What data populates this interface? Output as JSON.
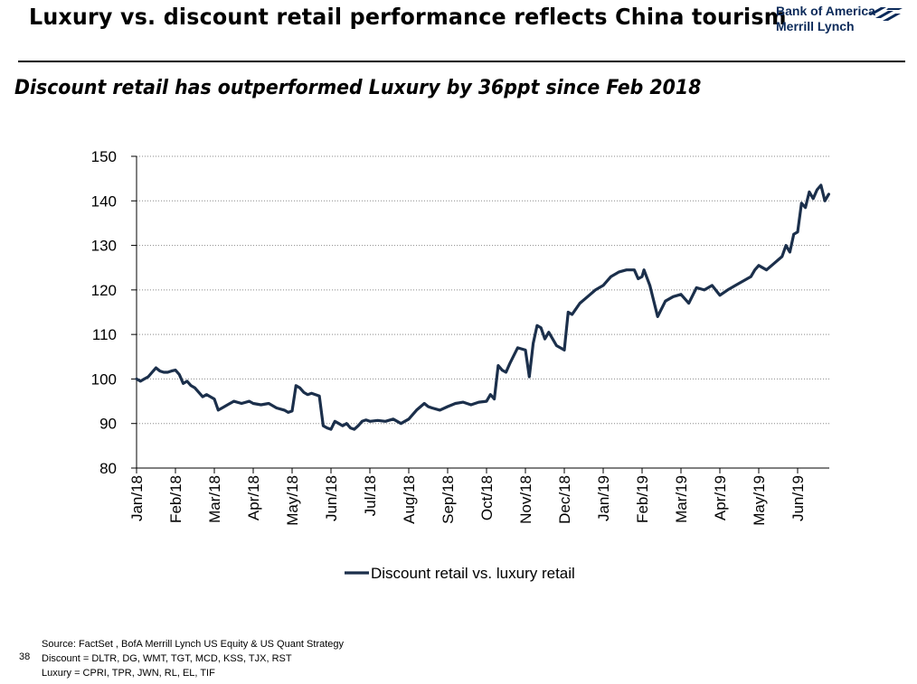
{
  "header": {
    "title": "Luxury vs. discount retail performance reflects China tourism",
    "logo_line1": "Bank of America",
    "logo_line2": "Merrill Lynch",
    "brand_color": "#0b2a5a",
    "flag_color": "#0b2a5a"
  },
  "subtitle": "Discount retail has outperformed Luxury by 36ppt since Feb 2018",
  "chart_data": {
    "type": "line",
    "title": "Discount retail has outperformed Luxury by 36ppt since Feb 2018",
    "xlabel": "",
    "ylabel": "",
    "ylim": [
      80,
      150
    ],
    "yticks": [
      "80",
      "90",
      "100",
      "110",
      "120",
      "130",
      "140",
      "150"
    ],
    "categories": [
      "Jan/18",
      "Feb/18",
      "Mar/18",
      "Apr/18",
      "May/18",
      "Jun/18",
      "Jul/18",
      "Aug/18",
      "Sep/18",
      "Oct/18",
      "Nov/18",
      "Dec/18",
      "Jan/19",
      "Feb/19",
      "Mar/19",
      "Apr/19",
      "May/19",
      "Jun/19"
    ],
    "grid": true,
    "legend_position": "bottom-center",
    "line_color": "#1b2f4b",
    "series": [
      {
        "name": "Discount retail vs. luxury retail",
        "x": [
          0,
          0.1,
          0.2,
          0.3,
          0.4,
          0.5,
          0.6,
          0.7,
          0.8,
          0.9,
          1.0,
          1.1,
          1.2,
          1.3,
          1.4,
          1.5,
          1.6,
          1.7,
          1.8,
          1.9,
          2.0,
          2.1,
          2.2,
          2.3,
          2.5,
          2.7,
          2.9,
          3.0,
          3.2,
          3.4,
          3.6,
          3.8,
          3.9,
          4.0,
          4.1,
          4.2,
          4.3,
          4.4,
          4.5,
          4.6,
          4.7,
          4.8,
          4.9,
          5.0,
          5.1,
          5.2,
          5.3,
          5.4,
          5.5,
          5.6,
          5.7,
          5.8,
          5.9,
          6.0,
          6.2,
          6.4,
          6.6,
          6.8,
          7.0,
          7.2,
          7.4,
          7.5,
          7.6,
          7.8,
          8.0,
          8.2,
          8.4,
          8.6,
          8.8,
          9.0,
          9.1,
          9.2,
          9.3,
          9.4,
          9.5,
          9.6,
          9.8,
          10.0,
          10.1,
          10.2,
          10.3,
          10.4,
          10.5,
          10.6,
          10.8,
          11.0,
          11.1,
          11.2,
          11.4,
          11.6,
          11.8,
          12.0,
          12.2,
          12.4,
          12.6,
          12.8,
          12.9,
          13.0,
          13.05,
          13.2,
          13.4,
          13.6,
          13.8,
          14.0,
          14.2,
          14.4,
          14.6,
          14.8,
          15.0,
          15.2,
          15.4,
          15.6,
          15.8,
          15.9,
          16.0,
          16.2,
          16.4,
          16.6,
          16.7,
          16.8,
          16.9,
          17.0,
          17.1,
          17.2,
          17.3,
          17.4,
          17.5,
          17.6,
          17.7,
          17.8
        ],
        "values": [
          100,
          99.5,
          100,
          100.5,
          101.5,
          102.5,
          101.8,
          101.5,
          101.5,
          101.8,
          102,
          101,
          99,
          99.5,
          98.5,
          98,
          97,
          96,
          96.5,
          96,
          95.5,
          93,
          93.5,
          94,
          95,
          94.5,
          95,
          94.5,
          94.2,
          94.5,
          93.5,
          93,
          92.5,
          92.8,
          98.5,
          98,
          97,
          96.5,
          96.8,
          96.5,
          96.2,
          89.5,
          89,
          88.7,
          90.5,
          90,
          89.5,
          90,
          89,
          88.7,
          89.5,
          90.5,
          90.8,
          90.5,
          90.7,
          90.5,
          91,
          90,
          91,
          93,
          94.5,
          93.8,
          93.5,
          93,
          93.8,
          94.5,
          94.8,
          94.2,
          94.8,
          95,
          96.5,
          95.5,
          103,
          102,
          101.5,
          103.5,
          107,
          106.5,
          100.5,
          108,
          112,
          111.5,
          109,
          110.5,
          107.5,
          106.5,
          115,
          114.5,
          117,
          118.5,
          120,
          121,
          123,
          124,
          124.5,
          124.5,
          122.5,
          123,
          124.5,
          121,
          114,
          117.5,
          118.5,
          119,
          117,
          120.5,
          120,
          121,
          118.8,
          120,
          121,
          122,
          123,
          124.5,
          125.5,
          124.5,
          126,
          127.5,
          130,
          128.5,
          132.5,
          133,
          139.5,
          138.5,
          142,
          140.5,
          142.5,
          143.5,
          140,
          141.5
        ]
      }
    ]
  },
  "footer": {
    "source": "Source: FactSet , BofA Merrill Lynch US Equity & US Quant Strategy",
    "discount": "Discount = DLTR, DG, WMT, TGT, MCD, KSS, TJX, RST",
    "luxury": "Luxury = CPRI, TPR, JWN, RL, EL, TIF",
    "page_number": "38"
  }
}
